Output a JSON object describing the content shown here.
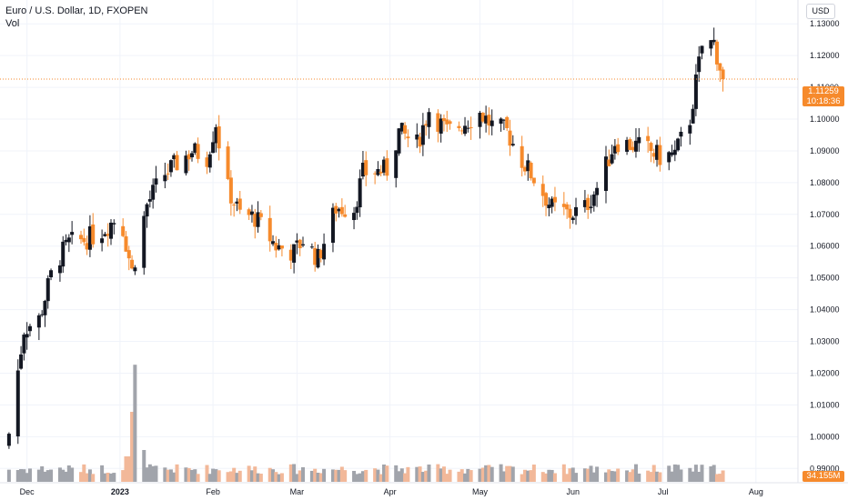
{
  "legend": {
    "symbol": "Euro / U.S. Dollar, 1D, FXOPEN",
    "indicator": "Vol"
  },
  "currency_button": "USD",
  "last_price_tag": {
    "price": "1.11259",
    "countdown": "10:18:36"
  },
  "volume_tag": "34.155M",
  "colors": {
    "up": "#131722",
    "down": "#f68a2c",
    "vol_up": "#a1a4ab",
    "vol_down": "#f2b899",
    "price_line": "#f68a2c",
    "grid": "#f0f3fa"
  },
  "chart_data": {
    "type": "candlestick",
    "title": "Euro / U.S. Dollar, 1D, FXOPEN",
    "y_ticks": [
      "1.13000",
      "1.12000",
      "1.11000",
      "1.10000",
      "1.09000",
      "1.08000",
      "1.07000",
      "1.06000",
      "1.05000",
      "1.04000",
      "1.03000",
      "1.02000",
      "1.01000",
      "1.00000",
      "0.99000"
    ],
    "y_range": [
      0.9855,
      1.1375
    ],
    "x_labels": [
      "Dec",
      "2023",
      "Feb",
      "Mar",
      "Apr",
      "May",
      "Jun",
      "Jul",
      "Aug"
    ],
    "last_price": 1.11259,
    "current_volume_label": "34.155M",
    "series": [
      {
        "name": "EUR/USD",
        "anchors": [
          [
            "2022-11-25",
            1.001
          ],
          [
            "2022-11-30",
            1.034
          ],
          [
            "2022-12-05",
            1.037
          ],
          [
            "2022-12-10",
            1.054
          ],
          [
            "2022-12-15",
            1.061
          ],
          [
            "2022-12-20",
            1.062
          ],
          [
            "2022-12-25",
            1.064
          ],
          [
            "2023-01-01",
            1.07
          ],
          [
            "2023-01-05",
            1.052
          ],
          [
            "2023-01-10",
            1.073
          ],
          [
            "2023-01-15",
            1.082
          ],
          [
            "2023-01-20",
            1.086
          ],
          [
            "2023-01-25",
            1.09
          ],
          [
            "2023-01-30",
            1.088
          ],
          [
            "2023-02-02",
            1.099
          ],
          [
            "2023-02-05",
            1.08
          ],
          [
            "2023-02-10",
            1.07
          ],
          [
            "2023-02-15",
            1.069
          ],
          [
            "2023-02-22",
            1.06
          ],
          [
            "2023-02-28",
            1.058
          ],
          [
            "2023-03-03",
            1.062
          ],
          [
            "2023-03-08",
            1.056
          ],
          [
            "2023-03-14",
            1.072
          ],
          [
            "2023-03-20",
            1.072
          ],
          [
            "2023-03-23",
            1.083
          ],
          [
            "2023-03-31",
            1.084
          ],
          [
            "2023-04-04",
            1.096
          ],
          [
            "2023-04-10",
            1.092
          ],
          [
            "2023-04-14",
            1.103
          ],
          [
            "2023-04-20",
            1.096
          ],
          [
            "2023-04-26",
            1.099
          ],
          [
            "2023-05-01",
            1.102
          ],
          [
            "2023-05-05",
            1.098
          ],
          [
            "2023-05-10",
            1.096
          ],
          [
            "2023-05-15",
            1.087
          ],
          [
            "2023-05-20",
            1.08
          ],
          [
            "2023-05-25",
            1.072
          ],
          [
            "2023-05-31",
            1.07
          ],
          [
            "2023-06-05",
            1.072
          ],
          [
            "2023-06-10",
            1.08
          ],
          [
            "2023-06-15",
            1.093
          ],
          [
            "2023-06-20",
            1.092
          ],
          [
            "2023-06-25",
            1.091
          ],
          [
            "2023-06-30",
            1.088
          ],
          [
            "2023-07-05",
            1.089
          ],
          [
            "2023-07-10",
            1.1
          ],
          [
            "2023-07-14",
            1.123
          ],
          [
            "2023-07-18",
            1.124
          ],
          [
            "2023-07-21",
            1.1126
          ]
        ]
      },
      {
        "name": "Vol",
        "spikes": [
          [
            "2023-01-06",
            0.92
          ],
          [
            "2023-01-05",
            0.55
          ],
          [
            "2023-01-09",
            0.25
          ],
          [
            "2023-01-03",
            0.2
          ],
          [
            "2023-01-04",
            0.2
          ]
        ]
      }
    ]
  }
}
